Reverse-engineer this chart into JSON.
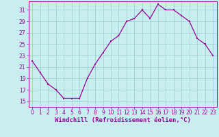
{
  "x": [
    0,
    1,
    2,
    3,
    4,
    5,
    6,
    7,
    8,
    9,
    10,
    11,
    12,
    13,
    14,
    15,
    16,
    17,
    18,
    19,
    20,
    21,
    22,
    23
  ],
  "y": [
    22,
    20,
    18,
    17,
    15.5,
    15.5,
    15.5,
    19,
    21.5,
    23.5,
    25.5,
    26.5,
    29,
    29.5,
    31,
    29.5,
    32,
    31,
    31,
    30,
    29,
    26,
    25,
    23
  ],
  "line_color": "#990099",
  "marker": "s",
  "markersize": 2,
  "bg_color": "#c8eef0",
  "grid_color": "#99cccc",
  "xlabel": "Windchill (Refroidissement éolien,°C)",
  "xlabel_color": "#990099",
  "xlabel_fontsize": 6.5,
  "ytick_labels": [
    "15",
    "17",
    "19",
    "21",
    "23",
    "25",
    "27",
    "29",
    "31"
  ],
  "ytick_values": [
    15,
    17,
    19,
    21,
    23,
    25,
    27,
    29,
    31
  ],
  "ylim": [
    14,
    32.5
  ],
  "xlim": [
    -0.5,
    23.5
  ],
  "xticks": [
    0,
    1,
    2,
    3,
    4,
    5,
    6,
    7,
    8,
    9,
    10,
    11,
    12,
    13,
    14,
    15,
    16,
    17,
    18,
    19,
    20,
    21,
    22,
    23
  ],
  "tick_color": "#990099",
  "tick_fontsize": 5.5,
  "spine_color": "#990099",
  "linewidth": 0.9
}
